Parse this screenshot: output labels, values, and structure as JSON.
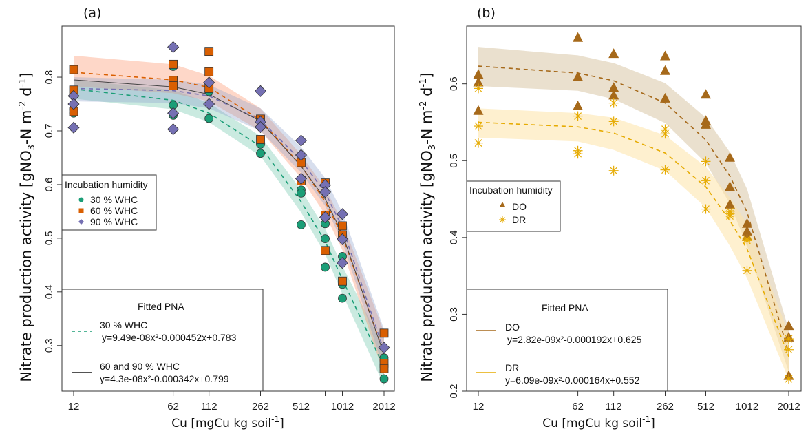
{
  "chart_data": [
    {
      "type": "scatter",
      "panel_label": "(a)",
      "title": "",
      "xlabel": "Cu [mgCu kg soil",
      "xlabel_sup": "-1",
      "xlabel_end": "]",
      "ylabel_parts": [
        "Nitrate production activity [gNO",
        "3",
        "-N m",
        "-2",
        " d",
        "-1",
        "]"
      ],
      "xscale": "log",
      "xlim": [
        12,
        2012
      ],
      "ylim": [
        0.215,
        0.895
      ],
      "x_ticks": [
        12,
        62,
        112,
        262,
        512,
        762,
        1012,
        2012
      ],
      "x_tick_labels": [
        "12",
        "62",
        "112",
        "262",
        "512",
        "",
        "1012",
        "2012"
      ],
      "y_ticks": [
        0.3,
        0.4,
        0.5,
        0.6,
        0.7,
        0.8
      ],
      "y_tick_labels": [
        "0.3",
        "0.4",
        "0.5",
        "0.6",
        "0.7",
        "0.8"
      ],
      "grid": false,
      "legend_points": {
        "title": "Incubation humidity",
        "placement": "left-middle",
        "entries": [
          {
            "label": "30 % WHC",
            "marker": "circle",
            "color": "#1b9e77"
          },
          {
            "label": "60 % WHC",
            "marker": "square",
            "color": "#d95f02"
          },
          {
            "label": "90 % WHC",
            "marker": "diamond",
            "color": "#7570b3"
          }
        ]
      },
      "legend_fits": {
        "title": "Fitted PNA",
        "placement": "bottom-left",
        "entries": [
          {
            "label": "30 % WHC",
            "equation": "y=9.49e-08x²-0.000452x+0.783",
            "line": "dashed",
            "color": "#1b9e77"
          },
          {
            "label": "60 and 90 % WHC",
            "equation": "y=4.3e-08x²-0.000342x+0.799",
            "line": "solid",
            "color": "#1a1a1a"
          }
        ]
      },
      "series": [
        {
          "name": "30 % WHC",
          "marker": "circle",
          "color": "#1b9e77",
          "band_color": "#66c2a5",
          "points": [
            [
              12,
              0.733
            ],
            [
              12,
              0.74
            ],
            [
              62,
              0.748
            ],
            [
              62,
              0.729
            ],
            [
              62,
              0.82
            ],
            [
              112,
              0.723
            ],
            [
              112,
              0.773
            ],
            [
              262,
              0.675
            ],
            [
              262,
              0.658
            ],
            [
              512,
              0.59
            ],
            [
              512,
              0.584
            ],
            [
              512,
              0.525
            ],
            [
              762,
              0.527
            ],
            [
              762,
              0.499
            ],
            [
              762,
              0.446
            ],
            [
              1012,
              0.466
            ],
            [
              1012,
              0.414
            ],
            [
              1012,
              0.388
            ],
            [
              2012,
              0.277
            ],
            [
              2012,
              0.238
            ]
          ],
          "fit": [
            [
              12,
              0.778
            ],
            [
              62,
              0.757
            ],
            [
              112,
              0.733
            ],
            [
              262,
              0.671
            ],
            [
              512,
              0.568
            ],
            [
              762,
              0.494
            ],
            [
              1012,
              0.423
            ],
            [
              2012,
              0.26
            ]
          ],
          "band": [
            [
              12,
              0.76,
              0.795
            ],
            [
              62,
              0.74,
              0.776
            ],
            [
              112,
              0.716,
              0.752
            ],
            [
              262,
              0.653,
              0.69
            ],
            [
              512,
              0.548,
              0.59
            ],
            [
              762,
              0.47,
              0.517
            ],
            [
              1012,
              0.396,
              0.448
            ],
            [
              2012,
              0.225,
              0.295
            ]
          ]
        },
        {
          "name": "60 % WHC",
          "marker": "square",
          "color": "#d95f02",
          "band_color": "#fc8d62",
          "points": [
            [
              12,
              0.814
            ],
            [
              12,
              0.776
            ],
            [
              12,
              0.736
            ],
            [
              62,
              0.824
            ],
            [
              62,
              0.794
            ],
            [
              62,
              0.784
            ],
            [
              112,
              0.848
            ],
            [
              112,
              0.81
            ],
            [
              112,
              0.779
            ],
            [
              262,
              0.722
            ],
            [
              262,
              0.684
            ],
            [
              512,
              0.641
            ],
            [
              512,
              0.607
            ],
            [
              762,
              0.603
            ],
            [
              762,
              0.543
            ],
            [
              762,
              0.477
            ],
            [
              1012,
              0.523
            ],
            [
              1012,
              0.506
            ],
            [
              1012,
              0.42
            ],
            [
              2012,
              0.323
            ],
            [
              2012,
              0.267
            ],
            [
              2012,
              0.257
            ]
          ],
          "fit": [
            [
              12,
              0.809
            ],
            [
              62,
              0.795
            ],
            [
              112,
              0.781
            ],
            [
              262,
              0.72
            ],
            [
              512,
              0.635
            ],
            [
              762,
              0.568
            ],
            [
              1012,
              0.505
            ],
            [
              2012,
              0.285
            ]
          ],
          "band": [
            [
              12,
              0.783,
              0.84
            ],
            [
              62,
              0.77,
              0.824
            ],
            [
              112,
              0.755,
              0.803
            ],
            [
              262,
              0.7,
              0.742
            ],
            [
              512,
              0.612,
              0.655
            ],
            [
              762,
              0.544,
              0.593
            ],
            [
              1012,
              0.478,
              0.53
            ],
            [
              2012,
              0.245,
              0.325
            ]
          ]
        },
        {
          "name": "90 % WHC",
          "marker": "diamond",
          "color": "#7570b3",
          "band_color": "#8da0cb",
          "points": [
            [
              12,
              0.765
            ],
            [
              12,
              0.75
            ],
            [
              12,
              0.706
            ],
            [
              62,
              0.856
            ],
            [
              62,
              0.733
            ],
            [
              62,
              0.703
            ],
            [
              112,
              0.79
            ],
            [
              112,
              0.75
            ],
            [
              262,
              0.774
            ],
            [
              262,
              0.717
            ],
            [
              262,
              0.707
            ],
            [
              512,
              0.682
            ],
            [
              512,
              0.655
            ],
            [
              512,
              0.611
            ],
            [
              762,
              0.599
            ],
            [
              762,
              0.586
            ],
            [
              762,
              0.539
            ],
            [
              1012,
              0.545
            ],
            [
              1012,
              0.498
            ],
            [
              1012,
              0.454
            ],
            [
              2012,
              0.296
            ]
          ],
          "fit": [
            [
              12,
              0.779
            ],
            [
              62,
              0.775
            ],
            [
              112,
              0.765
            ],
            [
              262,
              0.72
            ],
            [
              512,
              0.645
            ],
            [
              762,
              0.585
            ],
            [
              1012,
              0.52
            ],
            [
              2012,
              0.29
            ]
          ],
          "band": [
            [
              12,
              0.755,
              0.8
            ],
            [
              62,
              0.752,
              0.795
            ],
            [
              112,
              0.742,
              0.786
            ],
            [
              262,
              0.7,
              0.742
            ],
            [
              512,
              0.622,
              0.67
            ],
            [
              762,
              0.56,
              0.612
            ],
            [
              1012,
              0.493,
              0.548
            ],
            [
              2012,
              0.255,
              0.33
            ]
          ]
        }
      ],
      "combined_fit_60_90": [
        [
          12,
          0.795
        ],
        [
          62,
          0.782
        ],
        [
          112,
          0.768
        ],
        [
          262,
          0.718
        ],
        [
          512,
          0.634
        ],
        [
          762,
          0.573
        ],
        [
          1012,
          0.508
        ],
        [
          2012,
          0.283
        ]
      ]
    },
    {
      "type": "scatter",
      "panel_label": "(b)",
      "title": "",
      "xlabel": "Cu [mgCu kg soil",
      "xlabel_sup": "-1",
      "xlabel_end": "]",
      "ylabel_parts": [
        "Nitrate production activity [gNO",
        "3",
        "-N m",
        "-2",
        " d",
        "-1",
        "]"
      ],
      "xscale": "log",
      "xlim": [
        12,
        2012
      ],
      "ylim": [
        0.2,
        0.675
      ],
      "x_ticks": [
        12,
        62,
        112,
        262,
        512,
        762,
        1012,
        2012
      ],
      "x_tick_labels": [
        "12",
        "62",
        "112",
        "262",
        "512",
        "",
        "1012",
        "2012"
      ],
      "y_ticks": [
        0.2,
        0.3,
        0.4,
        0.5,
        0.6
      ],
      "y_tick_labels": [
        "0.2",
        "0.3",
        "0.4",
        "0.5",
        "0.6"
      ],
      "grid": false,
      "legend_points": {
        "title": "Incubation humidity",
        "placement": "left-middle",
        "entries": [
          {
            "label": "DO",
            "marker": "triangle",
            "color": "#a6691a"
          },
          {
            "label": "DR",
            "marker": "asterisk",
            "color": "#e6ab02"
          }
        ]
      },
      "legend_fits": {
        "title": "Fitted PNA",
        "placement": "bottom-left",
        "entries": [
          {
            "label": "DO",
            "equation": "y=2.82e-09x²-0.000192x+0.625",
            "line": "solid",
            "color": "#a6691a"
          },
          {
            "label": "DR",
            "equation": "y=6.09e-09x²-0.000164x+0.552",
            "line": "solid",
            "color": "#e6ab02"
          }
        ]
      },
      "series": [
        {
          "name": "DO",
          "marker": "triangle",
          "color": "#a6691a",
          "band_color": "#d9c6a5",
          "points": [
            [
              12,
              0.612
            ],
            [
              12,
              0.602
            ],
            [
              12,
              0.565
            ],
            [
              62,
              0.66
            ],
            [
              62,
              0.609
            ],
            [
              62,
              0.571
            ],
            [
              112,
              0.639
            ],
            [
              112,
              0.595
            ],
            [
              112,
              0.585
            ],
            [
              262,
              0.636
            ],
            [
              262,
              0.617
            ],
            [
              262,
              0.581
            ],
            [
              512,
              0.586
            ],
            [
              512,
              0.552
            ],
            [
              512,
              0.547
            ],
            [
              762,
              0.504
            ],
            [
              762,
              0.466
            ],
            [
              762,
              0.443
            ],
            [
              1012,
              0.418
            ],
            [
              1012,
              0.408
            ],
            [
              1012,
              0.401
            ],
            [
              2012,
              0.285
            ],
            [
              2012,
              0.27
            ],
            [
              2012,
              0.22
            ]
          ],
          "fit": [
            [
              12,
              0.623
            ],
            [
              62,
              0.614
            ],
            [
              112,
              0.604
            ],
            [
              262,
              0.575
            ],
            [
              512,
              0.527
            ],
            [
              762,
              0.48
            ],
            [
              1012,
              0.433
            ],
            [
              2012,
              0.25
            ]
          ],
          "band": [
            [
              12,
              0.597,
              0.648
            ],
            [
              62,
              0.591,
              0.637
            ],
            [
              112,
              0.58,
              0.627
            ],
            [
              262,
              0.549,
              0.601
            ],
            [
              512,
              0.497,
              0.556
            ],
            [
              762,
              0.444,
              0.511
            ],
            [
              1012,
              0.389,
              0.463
            ],
            [
              2012,
              0.225,
              0.28
            ]
          ]
        },
        {
          "name": "DR",
          "marker": "asterisk",
          "color": "#e6ab02",
          "band_color": "#fee3a8",
          "points": [
            [
              12,
              0.594
            ],
            [
              12,
              0.545
            ],
            [
              12,
              0.523
            ],
            [
              62,
              0.558
            ],
            [
              62,
              0.513
            ],
            [
              62,
              0.509
            ],
            [
              112,
              0.575
            ],
            [
              112,
              0.551
            ],
            [
              112,
              0.487
            ],
            [
              262,
              0.541
            ],
            [
              262,
              0.535
            ],
            [
              262,
              0.488
            ],
            [
              512,
              0.499
            ],
            [
              512,
              0.474
            ],
            [
              512,
              0.437
            ],
            [
              762,
              0.434
            ],
            [
              762,
              0.431
            ],
            [
              762,
              0.428
            ],
            [
              1012,
              0.398
            ],
            [
              1012,
              0.396
            ],
            [
              1012,
              0.357
            ],
            [
              2012,
              0.268
            ],
            [
              2012,
              0.254
            ],
            [
              2012,
              0.216
            ]
          ],
          "fit": [
            [
              12,
              0.55
            ],
            [
              62,
              0.544
            ],
            [
              112,
              0.536
            ],
            [
              262,
              0.51
            ],
            [
              512,
              0.466
            ],
            [
              762,
              0.422
            ],
            [
              1012,
              0.385
            ],
            [
              2012,
              0.245
            ]
          ],
          "band": [
            [
              12,
              0.53,
              0.568
            ],
            [
              62,
              0.525,
              0.562
            ],
            [
              112,
              0.514,
              0.556
            ],
            [
              262,
              0.487,
              0.533
            ],
            [
              512,
              0.439,
              0.492
            ],
            [
              762,
              0.389,
              0.452
            ],
            [
              1012,
              0.347,
              0.418
            ],
            [
              2012,
              0.215,
              0.275
            ]
          ]
        }
      ]
    }
  ]
}
